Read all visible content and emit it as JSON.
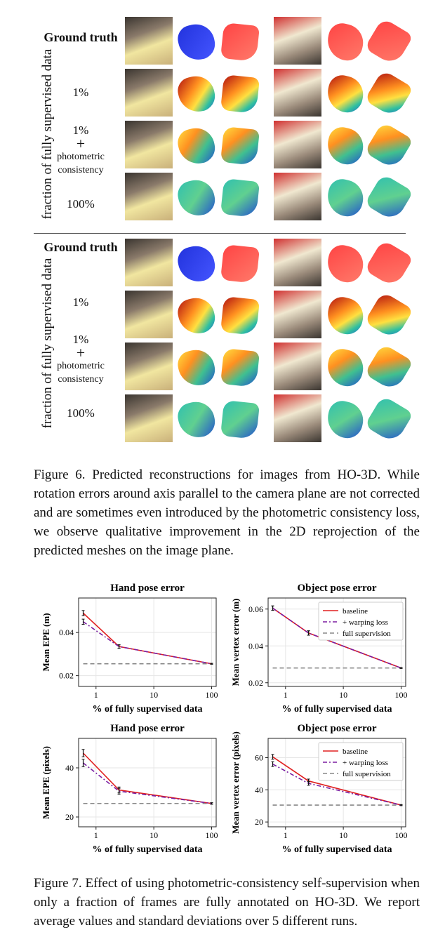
{
  "figure6": {
    "vertical_label": "fraction of fully supervised data",
    "rows": [
      {
        "label_lines": [
          "Ground truth"
        ],
        "bold": true
      },
      {
        "label_lines": [
          "1%"
        ],
        "bold": false
      },
      {
        "label_lines": [
          "1%",
          "+",
          "photometric",
          "consistency"
        ],
        "bold": false
      },
      {
        "label_lines": [
          "100%"
        ],
        "bold": false
      }
    ],
    "caption": "Figure 6. Predicted reconstructions for images from HO-3D. While rotation errors around axis parallel to the camera plane are not corrected and are sometimes even introduced by the photometric consistency loss, we observe qualitative improvement in the 2D reprojection of the predicted meshes on the image plane."
  },
  "figure7": {
    "caption": "Figure 7. Effect of using photometric-consistency self-supervision when only a fraction of frames are fully annotated on HO-3D. We report average values and standard deviations over 5 different runs."
  },
  "colors": {
    "baseline": "#e02020",
    "warping": "#7b1fa2",
    "full": "#888888"
  },
  "chart_data": [
    {
      "type": "line",
      "title": "Hand pose error",
      "xlabel": "% of fully supervised data",
      "ylabel": "Mean EPE (m)",
      "xscale": "log",
      "x": [
        0.6,
        2.5,
        100
      ],
      "xticks": [
        "1",
        "10",
        "100"
      ],
      "yticks": [
        "0.02",
        "0.04"
      ],
      "ylim": [
        0.015,
        0.056
      ],
      "legend": false,
      "series": [
        {
          "name": "baseline",
          "values": [
            0.049,
            0.0335,
            0.0255
          ],
          "err": [
            0.0012,
            0.0008,
            0.0002
          ]
        },
        {
          "name": "+ warping loss",
          "values": [
            0.045,
            0.0335,
            0.0255
          ],
          "err": [
            0.0012,
            0.0008,
            0.0002
          ]
        },
        {
          "name": "full supervision",
          "values": [
            0.0255,
            0.0255,
            0.0255
          ]
        }
      ]
    },
    {
      "type": "line",
      "title": "Object pose error",
      "xlabel": "% of fully supervised data",
      "ylabel": "Mean vertex error (m)",
      "xscale": "log",
      "x": [
        0.6,
        2.5,
        100
      ],
      "xticks": [
        "1",
        "10",
        "100"
      ],
      "yticks": [
        "0.02",
        "0.04",
        "0.06"
      ],
      "ylim": [
        0.018,
        0.066
      ],
      "legend": true,
      "series": [
        {
          "name": "baseline",
          "values": [
            0.0605,
            0.047,
            0.028
          ],
          "err": [
            0.0012,
            0.0012,
            0.0002
          ]
        },
        {
          "name": "+ warping loss",
          "values": [
            0.0605,
            0.047,
            0.028
          ],
          "err": [
            0.0012,
            0.0012,
            0.0002
          ]
        },
        {
          "name": "full supervision",
          "values": [
            0.028,
            0.028,
            0.028
          ]
        }
      ]
    },
    {
      "type": "line",
      "title": "Hand pose error",
      "xlabel": "% of fully supervised data",
      "ylabel": "Mean EPE (pixels)",
      "xscale": "log",
      "x": [
        0.6,
        2.5,
        100
      ],
      "xticks": [
        "1",
        "10",
        "100"
      ],
      "yticks": [
        "20",
        "40"
      ],
      "ylim": [
        16,
        52
      ],
      "legend": false,
      "series": [
        {
          "name": "baseline",
          "values": [
            46,
            31,
            25.5
          ],
          "err": [
            1.5,
            1.2,
            0.3
          ]
        },
        {
          "name": "+ warping loss",
          "values": [
            42,
            30.5,
            25.5
          ],
          "err": [
            1.5,
            1.2,
            0.3
          ]
        },
        {
          "name": "full supervision",
          "values": [
            25.5,
            25.5,
            25.5
          ]
        }
      ]
    },
    {
      "type": "line",
      "title": "Object pose error",
      "xlabel": "% of fully supervised data",
      "ylabel": "Mean vertex error (pixels)",
      "xscale": "log",
      "x": [
        0.6,
        2.5,
        100
      ],
      "xticks": [
        "1",
        "10",
        "100"
      ],
      "yticks": [
        "20",
        "40",
        "60"
      ],
      "ylim": [
        17,
        72
      ],
      "legend": true,
      "series": [
        {
          "name": "baseline",
          "values": [
            60.5,
            45.5,
            30.5
          ],
          "err": [
            1.5,
            1.2,
            0.3
          ]
        },
        {
          "name": "+ warping loss",
          "values": [
            56,
            44,
            30.5
          ],
          "err": [
            1.5,
            1.2,
            0.3
          ]
        },
        {
          "name": "full supervision",
          "values": [
            30.5,
            30.5,
            30.5
          ]
        }
      ]
    }
  ]
}
